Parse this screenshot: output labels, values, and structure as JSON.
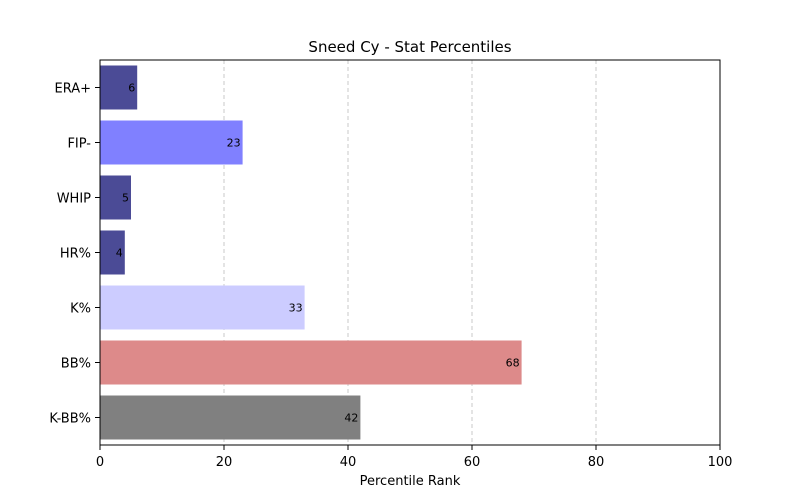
{
  "chart_data": {
    "type": "bar",
    "orientation": "horizontal",
    "title": "Sneed Cy - Stat Percentiles",
    "xlabel": "Percentile Rank",
    "ylabel": "",
    "xlim": [
      0,
      100
    ],
    "xticks": [
      "0",
      "20",
      "40",
      "60",
      "80",
      "100"
    ],
    "grid": "x-dashed",
    "categories": [
      "ERA+",
      "FIP-",
      "WHIP",
      "HR%",
      "K%",
      "BB%",
      "K-BB%"
    ],
    "values": [
      6,
      23,
      5,
      4,
      33,
      68,
      42
    ],
    "colors": [
      "#4b4b96",
      "#8080ff",
      "#4b4b96",
      "#4b4b96",
      "#ccccff",
      "#dd8a8a",
      "#808080"
    ]
  }
}
